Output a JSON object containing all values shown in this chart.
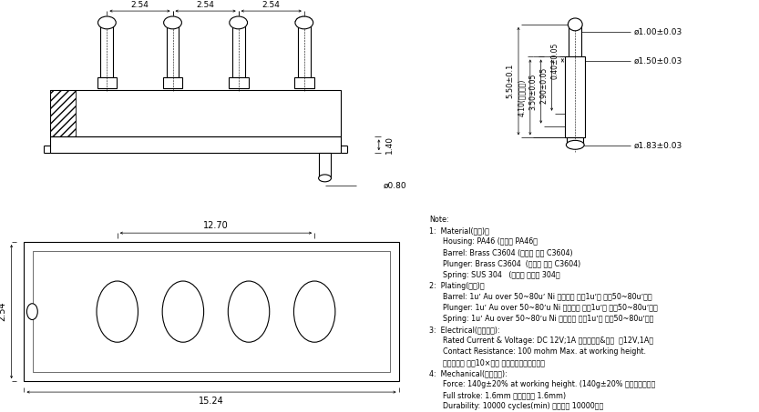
{
  "bg_color": "#ffffff",
  "lw": 0.8,
  "tlw": 0.4,
  "dlw": 0.5,
  "notes_lines": [
    "Note:",
    "1:  Material(材料)：",
    "      Housing: PA46 (泠芯： PA46）",
    "      Barrel: Brass C3604 (针管： 黄铜 C3604)",
    "      Plunger: Brass C3604  (针头： 黄铜 C3604)",
    "      Spring: SUS 304   (弹笧： 不锈鑉 304）",
    "2:  Plating(电镲)：",
    "      Barrel: 1uʼ Au over 50~80uʼ Ni （针管： 镀金1uʼ， 镕幰50~80uʼ。）",
    "      Plunger: 1uʼ Au over 50~80ʼu Ni （针头： 镀金1uʼ， 镕幰50~80uʼ。）",
    "      Spring: 1uʼ Au over 50~80ʼu Ni （弹笧： 镀金1uʼ， 镕幰50~80uʼ。）",
    "3:  Electrical(电气特性):",
    "      Rated Current & Voltage: DC 12V;1A （额定电压&电流  直12V,1A）",
    "      Contact Resistance: 100 mohm Max. at working height.",
    "      接触电阔： 最大10×毫欧 （在工作高度状态下）",
    "4:  Mechanical(机械性能):",
    "      Force: 140g±20% at working height. (140g±20% 在工作高度时）",
    "      Full stroke: 1.6mm （全冲程： 1.6mm)",
    "      Durability: 10000 cycles(min) （寿命： 10000次）"
  ],
  "dim_254": "2.54",
  "dim_1270": "12.70",
  "dim_1524": "15.24",
  "dim_254b": "2.54",
  "dim_140": "1.40",
  "dim_080": "ø0.80",
  "dim_d100": "ø1.00±0.03",
  "dim_d150": "ø1.50±0.03",
  "dim_d183": "ø1.83±0.03",
  "dim_550": "5.50±0.1",
  "dim_410": "4.10(工作高度)",
  "dim_350": "3.50±0.05",
  "dim_290": "2.90±0.05",
  "dim_040": "0.40±0.05"
}
